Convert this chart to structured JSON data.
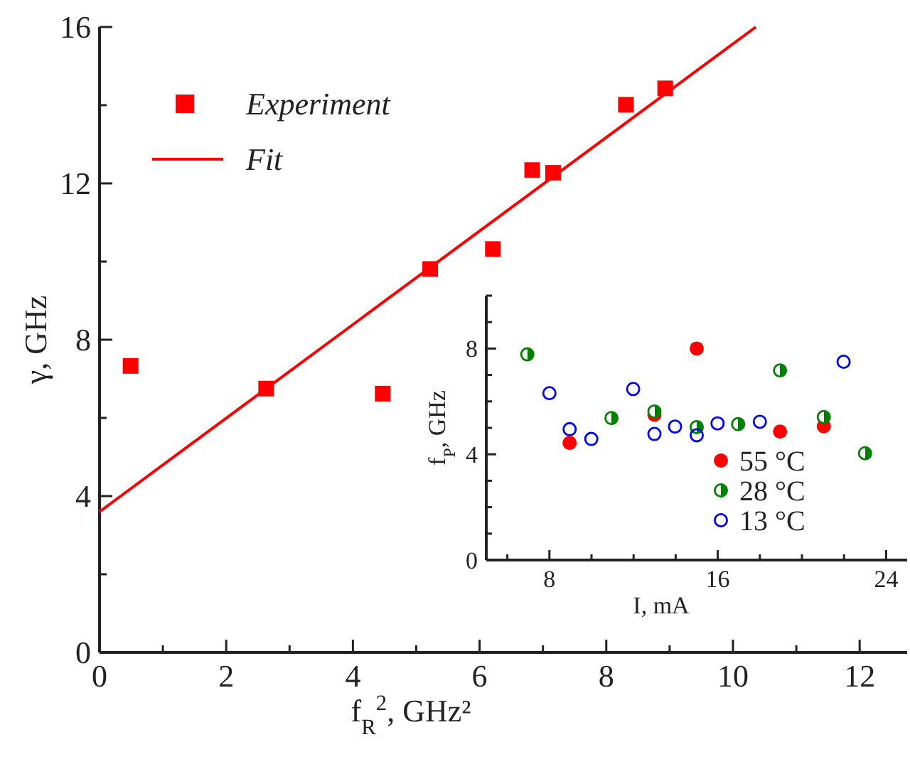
{
  "chart_data": [
    {
      "type": "scatter",
      "xlabel": "f$_{R}$$^{2}$, GHz²",
      "ylabel": "γ, GHz",
      "xlim": [
        0,
        12.75
      ],
      "ylim": [
        0,
        16
      ],
      "xticks": [
        0,
        {
          "value": 1,
          "label": null
        },
        2,
        {
          "value": 3,
          "label": null
        },
        4,
        {
          "value": 5,
          "label": null
        },
        6,
        {
          "value": 7,
          "label": null
        },
        8,
        {
          "value": 9,
          "label": null
        },
        10,
        {
          "value": 11,
          "label": null
        },
        12
      ],
      "yticks": [
        0,
        {
          "value": 2,
          "label": null
        },
        4,
        {
          "value": 6,
          "label": null
        },
        8,
        {
          "value": 10,
          "label": null
        },
        12,
        {
          "value": 14,
          "label": null
        },
        16
      ],
      "grid": false,
      "legend": "top left",
      "series": [
        {
          "name": "Experiment",
          "marker": "square",
          "color": "#ff0000",
          "x": [
            0.49,
            2.63,
            4.47,
            5.22,
            6.21,
            6.83,
            7.16,
            8.31,
            8.93
          ],
          "values": [
            7.33,
            6.75,
            6.62,
            9.81,
            10.32,
            12.34,
            12.27,
            14.01,
            14.43
          ]
        },
        {
          "name": "Fit",
          "type": "line",
          "marker": "none",
          "line_style": "solid",
          "color": "#ff0000",
          "x": [
            0,
            10.36
          ],
          "values": [
            3.6,
            16
          ]
        }
      ]
    },
    {
      "type": "scatter",
      "xlabel": "I, mA",
      "ylabel": "f$_{P}$, GHz",
      "xlim": [
        5,
        25
      ],
      "ylim": [
        0,
        10
      ],
      "xticks": [
        {
          "value": 6,
          "label": null
        },
        8,
        {
          "value": 10,
          "label": null
        },
        {
          "value": 12,
          "label": null
        },
        {
          "value": 14,
          "label": null
        },
        16,
        {
          "value": 18,
          "label": null
        },
        {
          "value": 20,
          "label": null
        },
        {
          "value": 22,
          "label": null
        },
        24
      ],
      "yticks": [
        0,
        {
          "value": 1,
          "label": null
        },
        {
          "value": 2,
          "label": null
        },
        {
          "value": 3,
          "label": null
        },
        4,
        {
          "value": 5,
          "label": null
        },
        {
          "value": 6,
          "label": null
        },
        {
          "value": 7,
          "label": null
        },
        8,
        {
          "value": 9,
          "label": null
        },
        {
          "value": 10,
          "label": null
        }
      ],
      "grid": false,
      "legend": "bottom right",
      "marker": "circle",
      "series": [
        {
          "name": "55 °C",
          "color": "#ff0000",
          "x": [
            8.96,
            12.99,
            15.0,
            18.96,
            21.04
          ],
          "values": [
            4.43,
            5.5,
            8.0,
            4.86,
            5.06
          ]
        },
        {
          "name": "28 °C",
          "color": "#008000",
          "x": [
            6.95,
            10.95,
            12.99,
            15.0,
            16.97,
            18.96,
            21.04,
            23.0
          ],
          "values": [
            7.78,
            5.37,
            5.62,
            5.03,
            5.14,
            7.17,
            5.41,
            4.04
          ]
        },
        {
          "name": "13 °C",
          "color": "#0000ff",
          "x": [
            8.0,
            8.96,
            9.99,
            11.98,
            12.99,
            13.97,
            15.0,
            15.99,
            18.0,
            21.98
          ],
          "values": [
            6.31,
            4.95,
            4.58,
            6.47,
            4.77,
            5.05,
            4.72,
            5.17,
            5.23,
            7.5
          ]
        }
      ]
    }
  ]
}
